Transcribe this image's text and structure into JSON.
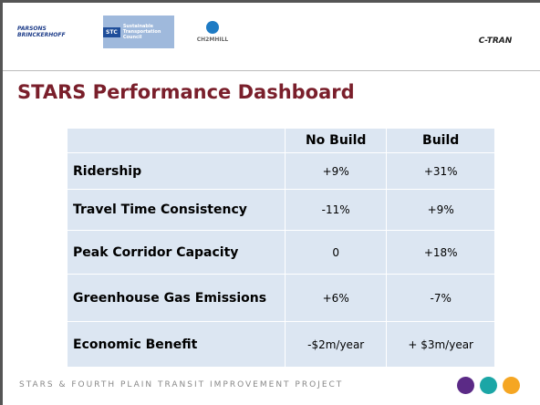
{
  "header": {
    "logos": [
      "PARSONS BRINCKERHOFF",
      "STC",
      "Sustainable Transportation Council",
      "CH2MHILL",
      "C-TRAN"
    ]
  },
  "title": "STARS Performance Dashboard",
  "table": {
    "columns": [
      "",
      "No Build",
      "Build"
    ],
    "rows": [
      [
        "Ridership",
        "+9%",
        "+31%"
      ],
      [
        "Travel Time Consistency",
        "-11%",
        "+9%"
      ],
      [
        "Peak Corridor Capacity",
        "0",
        "+18%"
      ],
      [
        "Greenhouse Gas Emissions",
        "+6%",
        "-7%"
      ],
      [
        "Economic Benefit",
        "-$2m/year",
        "+ $3m/year"
      ]
    ]
  },
  "footer": {
    "text": "STARS & FOURTH PLAIN TRANSIT IMPROVEMENT PROJECT"
  }
}
